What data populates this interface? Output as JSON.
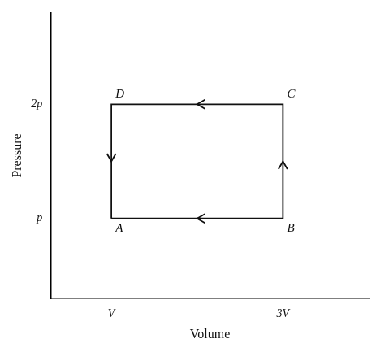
{
  "chart_data": {
    "type": "line",
    "x": [
      1,
      3,
      3,
      1,
      1
    ],
    "values": [
      1,
      1,
      2,
      2,
      1
    ],
    "color": "#111111",
    "xlim": [
      0.3,
      4.0
    ],
    "ylim": [
      0.3,
      2.8
    ],
    "xticks": [
      {
        "value": 1,
        "label": "V"
      },
      {
        "value": 3,
        "label": "3V"
      }
    ],
    "yticks": [
      {
        "value": 1,
        "label": "p"
      },
      {
        "value": 2,
        "label": "2p"
      }
    ],
    "xlabel": "Volume",
    "ylabel": "Pressure",
    "grid": false,
    "annotations": [
      {
        "text": "A",
        "x": 1,
        "y": 1
      },
      {
        "text": "B",
        "x": 3,
        "y": 1
      },
      {
        "text": "C",
        "x": 3,
        "y": 2
      },
      {
        "text": "D",
        "x": 1,
        "y": 2
      }
    ],
    "arrows": [
      {
        "from": [
          1,
          2
        ],
        "to": [
          1,
          1
        ]
      },
      {
        "from": [
          3,
          2
        ],
        "to": [
          1,
          2
        ]
      },
      {
        "from": [
          3,
          1
        ],
        "to": [
          3,
          2
        ]
      },
      {
        "from": [
          3,
          1
        ],
        "to": [
          1,
          1
        ]
      }
    ]
  }
}
